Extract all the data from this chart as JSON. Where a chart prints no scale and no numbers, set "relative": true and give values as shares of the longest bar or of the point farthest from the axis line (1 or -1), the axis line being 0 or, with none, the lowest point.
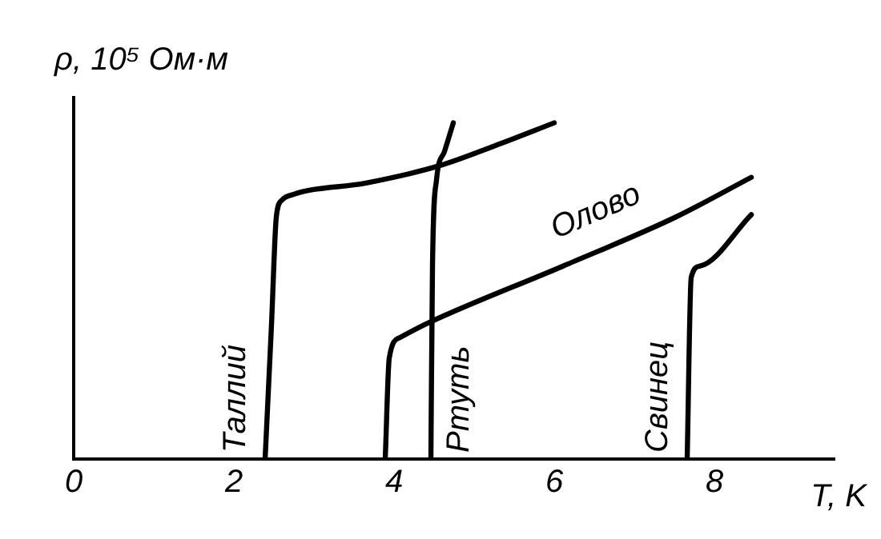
{
  "chart_data": {
    "type": "line",
    "xlabel": "T, K",
    "ylabel": "ρ, 10⁵ Ом·м",
    "relative": true,
    "xlim": [
      0,
      9.5
    ],
    "xticks": [
      0,
      2,
      4,
      6,
      8
    ],
    "grid": false,
    "legend": false,
    "marker": "none",
    "line_style": "solid",
    "series": [
      {
        "name": "Таллий",
        "color": "#000000",
        "x": [
          2.39,
          2.47,
          2.53,
          2.6,
          2.74,
          3.65,
          4.56,
          5.26,
          6.0
        ],
        "values": [
          0,
          0.4,
          0.72,
          0.77,
          0.787,
          0.821,
          0.872,
          0.932,
          1
        ]
      },
      {
        "name": "Ртуть",
        "color": "#000000",
        "x": [
          4.46,
          4.48,
          4.53,
          4.63,
          4.74
        ],
        "values": [
          0,
          0.574,
          0.83,
          0.915,
          1
        ]
      },
      {
        "name": "Олово",
        "color": "#000000",
        "x": [
          3.89,
          3.94,
          4.07,
          4.42,
          6.11,
          7.51,
          8.46
        ],
        "values": [
          0,
          0.3,
          0.361,
          0.404,
          0.574,
          0.719,
          0.838
        ]
      },
      {
        "name": "Свинец",
        "color": "#000000",
        "x": [
          7.66,
          7.71,
          7.82,
          8.46
        ],
        "values": [
          0,
          0.54,
          0.574,
          0.727
        ]
      }
    ]
  }
}
